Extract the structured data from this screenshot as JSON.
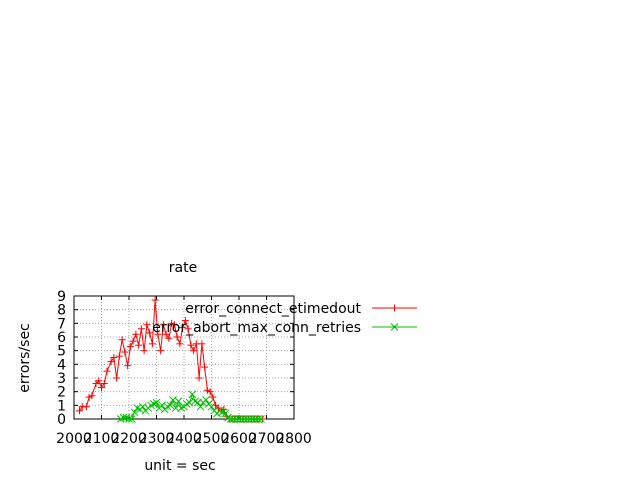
{
  "chart_data": {
    "type": "line",
    "title": "rate",
    "xlabel": "unit = sec",
    "ylabel": "errors/sec",
    "xlim": [
      2000,
      2800
    ],
    "ylim": [
      0,
      9
    ],
    "x_ticks": [
      "2000",
      "2100",
      "2200",
      "2300",
      "2400",
      "2500",
      "2600",
      "2700",
      "2800"
    ],
    "y_ticks": [
      "0",
      "1",
      "2",
      "3",
      "4",
      "5",
      "6",
      "7",
      "8",
      "9"
    ],
    "grid": true,
    "legend_position": "top-right",
    "series": [
      {
        "name": "error_connect_etimedout",
        "color": "#ff0000",
        "marker": "plus",
        "points": [
          [
            2020,
            0.6
          ],
          [
            2030,
            0.9
          ],
          [
            2045,
            0.9
          ],
          [
            2055,
            1.6
          ],
          [
            2065,
            1.7
          ],
          [
            2080,
            2.6
          ],
          [
            2090,
            2.8
          ],
          [
            2100,
            2.3
          ],
          [
            2110,
            2.6
          ],
          [
            2120,
            3.5
          ],
          [
            2135,
            4.2
          ],
          [
            2145,
            4.5
          ],
          [
            2155,
            3.0
          ],
          [
            2165,
            4.6
          ],
          [
            2175,
            5.8
          ],
          [
            2185,
            4.9
          ],
          [
            2195,
            3.9
          ],
          [
            2205,
            5.3
          ],
          [
            2215,
            5.7
          ],
          [
            2225,
            6.2
          ],
          [
            2235,
            5.4
          ],
          [
            2245,
            6.6
          ],
          [
            2255,
            5.0
          ],
          [
            2265,
            6.9
          ],
          [
            2275,
            6.3
          ],
          [
            2285,
            5.5
          ],
          [
            2295,
            8.7
          ],
          [
            2305,
            6.2
          ],
          [
            2315,
            5.0
          ],
          [
            2325,
            6.9
          ],
          [
            2335,
            6.2
          ],
          [
            2345,
            5.9
          ],
          [
            2355,
            7.0
          ],
          [
            2365,
            6.9
          ],
          [
            2375,
            6.0
          ],
          [
            2385,
            5.5
          ],
          [
            2395,
            6.7
          ],
          [
            2405,
            7.2
          ],
          [
            2415,
            6.6
          ],
          [
            2425,
            5.4
          ],
          [
            2435,
            5.0
          ],
          [
            2445,
            5.5
          ],
          [
            2455,
            3.0
          ],
          [
            2465,
            5.5
          ],
          [
            2475,
            3.8
          ],
          [
            2485,
            2.1
          ],
          [
            2495,
            2.0
          ],
          [
            2505,
            1.6
          ],
          [
            2515,
            1.0
          ],
          [
            2525,
            0.8
          ],
          [
            2535,
            0.6
          ],
          [
            2545,
            0.7
          ],
          [
            2555,
            0.2
          ],
          [
            2565,
            0.0
          ],
          [
            2575,
            0.0
          ],
          [
            2585,
            0.0
          ],
          [
            2595,
            0.0
          ],
          [
            2605,
            0.0
          ],
          [
            2615,
            0.0
          ],
          [
            2625,
            0.0
          ],
          [
            2635,
            0.0
          ],
          [
            2645,
            0.0
          ],
          [
            2655,
            0.0
          ],
          [
            2665,
            0.0
          ],
          [
            2675,
            0.0
          ],
          [
            2685,
            0.0
          ]
        ]
      },
      {
        "name": "error_abort_max_conn_retries",
        "color": "#00c000",
        "marker": "cross",
        "points": [
          [
            2170,
            0.0
          ],
          [
            2180,
            0.1
          ],
          [
            2190,
            0.1
          ],
          [
            2200,
            0.0
          ],
          [
            2210,
            0.0
          ],
          [
            2220,
            0.5
          ],
          [
            2230,
            0.8
          ],
          [
            2240,
            0.7
          ],
          [
            2250,
            0.9
          ],
          [
            2260,
            0.6
          ],
          [
            2270,
            0.8
          ],
          [
            2280,
            1.0
          ],
          [
            2290,
            1.1
          ],
          [
            2300,
            1.2
          ],
          [
            2310,
            0.8
          ],
          [
            2320,
            1.0
          ],
          [
            2330,
            0.7
          ],
          [
            2340,
            0.9
          ],
          [
            2350,
            1.0
          ],
          [
            2360,
            1.4
          ],
          [
            2370,
            0.8
          ],
          [
            2380,
            1.3
          ],
          [
            2390,
            0.8
          ],
          [
            2400,
            0.9
          ],
          [
            2410,
            1.1
          ],
          [
            2420,
            1.2
          ],
          [
            2430,
            1.8
          ],
          [
            2440,
            1.3
          ],
          [
            2450,
            1.2
          ],
          [
            2460,
            0.9
          ],
          [
            2470,
            1.2
          ],
          [
            2480,
            1.4
          ],
          [
            2490,
            1.1
          ],
          [
            2500,
            0.9
          ],
          [
            2510,
            0.6
          ],
          [
            2520,
            0.4
          ],
          [
            2530,
            0.6
          ],
          [
            2540,
            0.5
          ],
          [
            2550,
            0.4
          ],
          [
            2560,
            0.1
          ],
          [
            2570,
            0.0
          ],
          [
            2580,
            0.0
          ],
          [
            2590,
            0.0
          ],
          [
            2600,
            0.0
          ],
          [
            2610,
            0.0
          ],
          [
            2620,
            0.0
          ],
          [
            2630,
            0.0
          ],
          [
            2640,
            0.0
          ],
          [
            2650,
            0.0
          ],
          [
            2660,
            0.0
          ],
          [
            2670,
            0.0
          ],
          [
            2680,
            0.0
          ]
        ]
      }
    ]
  }
}
